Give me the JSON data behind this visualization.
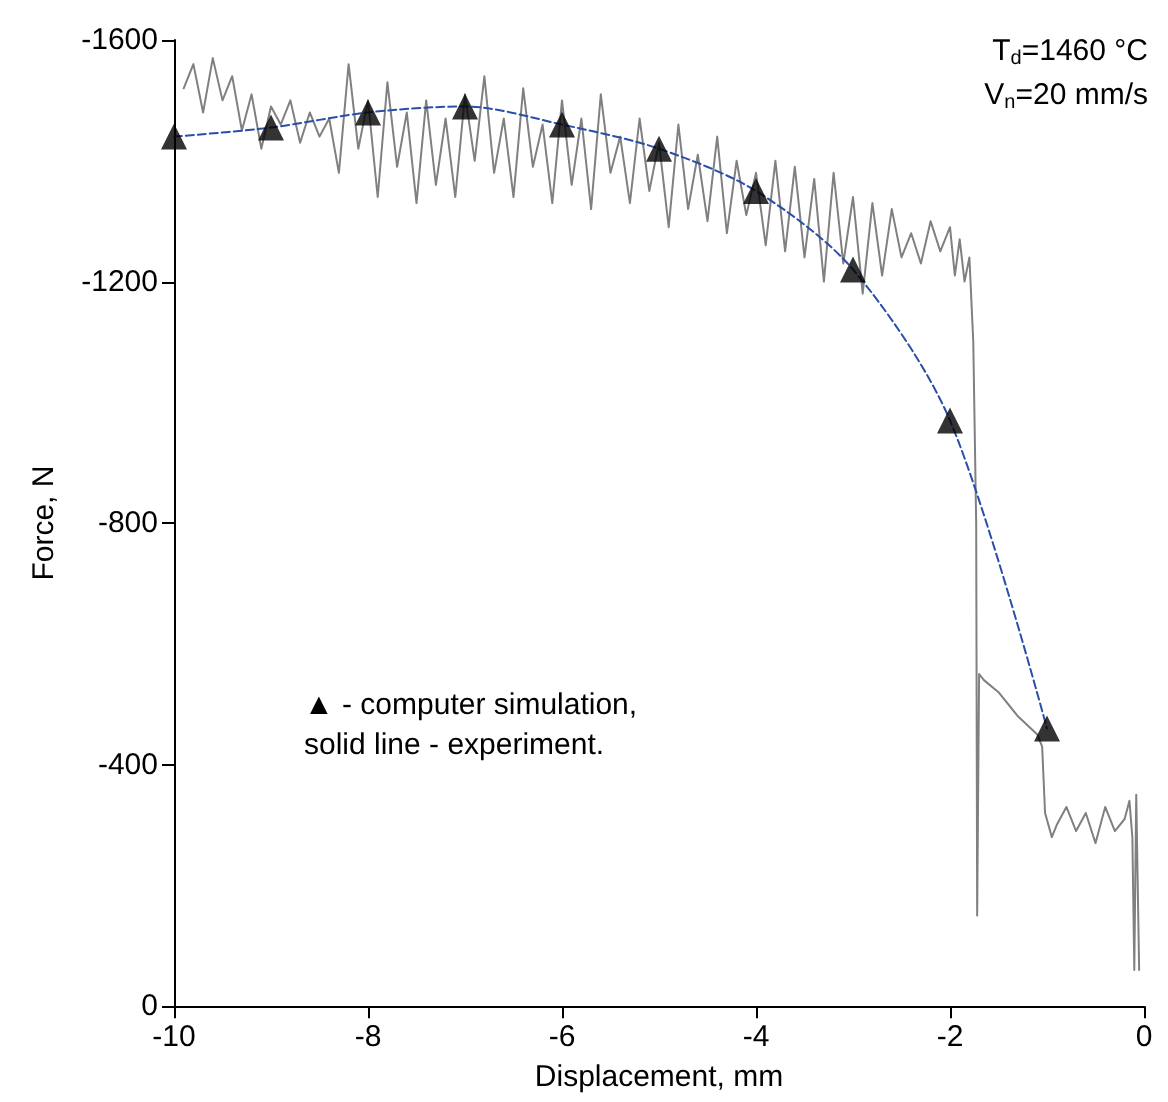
{
  "chart_data": {
    "type": "line",
    "xlabel": "Displacement, mm",
    "ylabel": "Force, N",
    "xlim": [
      -10,
      0
    ],
    "xticks": [
      -10,
      -8,
      -6,
      -4,
      -2,
      0
    ],
    "ylim": [
      0,
      -1600
    ],
    "yticks": [
      0,
      -400,
      -800,
      -1200,
      -1600
    ],
    "grid": false,
    "annotations": [
      "T$_{d}$=1460 °C",
      "V$_{n}$=20 mm/s",
      "▲ - computer simulation,",
      "solid line - experiment."
    ],
    "series": [
      {
        "color": "#808080",
        "line_style": "solid",
        "marker": "none",
        "x": [
          -9.9,
          -9.8,
          -9.7,
          -9.6,
          -9.5,
          -9.4,
          -9.3,
          -9.2,
          -9.1,
          -9.0,
          -8.9,
          -8.8,
          -8.7,
          -8.6,
          -8.5,
          -8.4,
          -8.3,
          -8.2,
          -8.1,
          -8.0,
          -7.9,
          -7.8,
          -7.7,
          -7.6,
          -7.5,
          -7.4,
          -7.3,
          -7.2,
          -7.1,
          -7.0,
          -6.9,
          -6.8,
          -6.7,
          -6.6,
          -6.5,
          -6.4,
          -6.3,
          -6.2,
          -6.1,
          -6.0,
          -5.9,
          -5.8,
          -5.7,
          -5.6,
          -5.5,
          -5.4,
          -5.3,
          -5.2,
          -5.1,
          -5.0,
          -4.9,
          -4.8,
          -4.7,
          -4.6,
          -4.5,
          -4.4,
          -4.3,
          -4.2,
          -4.1,
          -4.0,
          -3.9,
          -3.8,
          -3.7,
          -3.6,
          -3.5,
          -3.4,
          -3.3,
          -3.2,
          -3.1,
          -3.0,
          -2.9,
          -2.8,
          -2.7,
          -2.6,
          -2.5,
          -2.4,
          -2.3,
          -2.2,
          -2.1,
          -2.0,
          -1.95,
          -1.9,
          -1.85,
          -1.8,
          -1.76,
          -1.73,
          -1.72,
          -1.7,
          -1.65,
          -1.5,
          -1.3,
          -1.1,
          -1.05,
          -1.02,
          -0.95,
          -0.9,
          -0.8,
          -0.7,
          -0.6,
          -0.5,
          -0.4,
          -0.3,
          -0.2,
          -0.15,
          -0.12,
          -0.1,
          -0.08,
          -0.05
        ],
        "values": [
          -1520,
          -1560,
          -1480,
          -1570,
          -1500,
          -1540,
          -1450,
          -1510,
          -1420,
          -1490,
          -1460,
          -1500,
          -1430,
          -1480,
          -1440,
          -1470,
          -1380,
          -1560,
          -1420,
          -1500,
          -1340,
          -1530,
          -1390,
          -1480,
          -1330,
          -1500,
          -1360,
          -1470,
          -1340,
          -1510,
          -1400,
          -1540,
          -1380,
          -1470,
          -1340,
          -1520,
          -1390,
          -1460,
          -1330,
          -1500,
          -1360,
          -1470,
          -1320,
          -1510,
          -1380,
          -1440,
          -1330,
          -1470,
          -1350,
          -1430,
          -1290,
          -1460,
          -1320,
          -1410,
          -1300,
          -1440,
          -1280,
          -1400,
          -1310,
          -1380,
          -1260,
          -1400,
          -1250,
          -1390,
          -1240,
          -1370,
          -1200,
          -1380,
          -1230,
          -1340,
          -1180,
          -1330,
          -1210,
          -1320,
          -1240,
          -1280,
          -1230,
          -1300,
          -1250,
          -1290,
          -1210,
          -1270,
          -1200,
          -1240,
          -1100,
          -800,
          -150,
          -550,
          -540,
          -520,
          -480,
          -450,
          -430,
          -320,
          -280,
          -300,
          -330,
          -290,
          -320,
          -270,
          -330,
          -290,
          -310,
          -340,
          -280,
          -60,
          -350,
          -60
        ]
      },
      {
        "type": "line",
        "color": "#2a4fa8",
        "line_style": "dashed",
        "marker": "none",
        "x": [
          -10,
          -9,
          -8,
          -7,
          -6,
          -5,
          -4,
          -3,
          -2,
          -1
        ],
        "values": [
          -1440,
          -1455,
          -1480,
          -1490,
          -1460,
          -1420,
          -1350,
          -1220,
          -970,
          -460
        ]
      },
      {
        "type": "scatter",
        "color": "#000000",
        "marker": "triangle",
        "x": [
          -10,
          -9,
          -8,
          -7,
          -6,
          -5,
          -4,
          -3,
          -2,
          -1
        ],
        "values": [
          -1440,
          -1455,
          -1480,
          -1490,
          -1460,
          -1420,
          -1350,
          -1220,
          -970,
          -460
        ]
      }
    ]
  }
}
